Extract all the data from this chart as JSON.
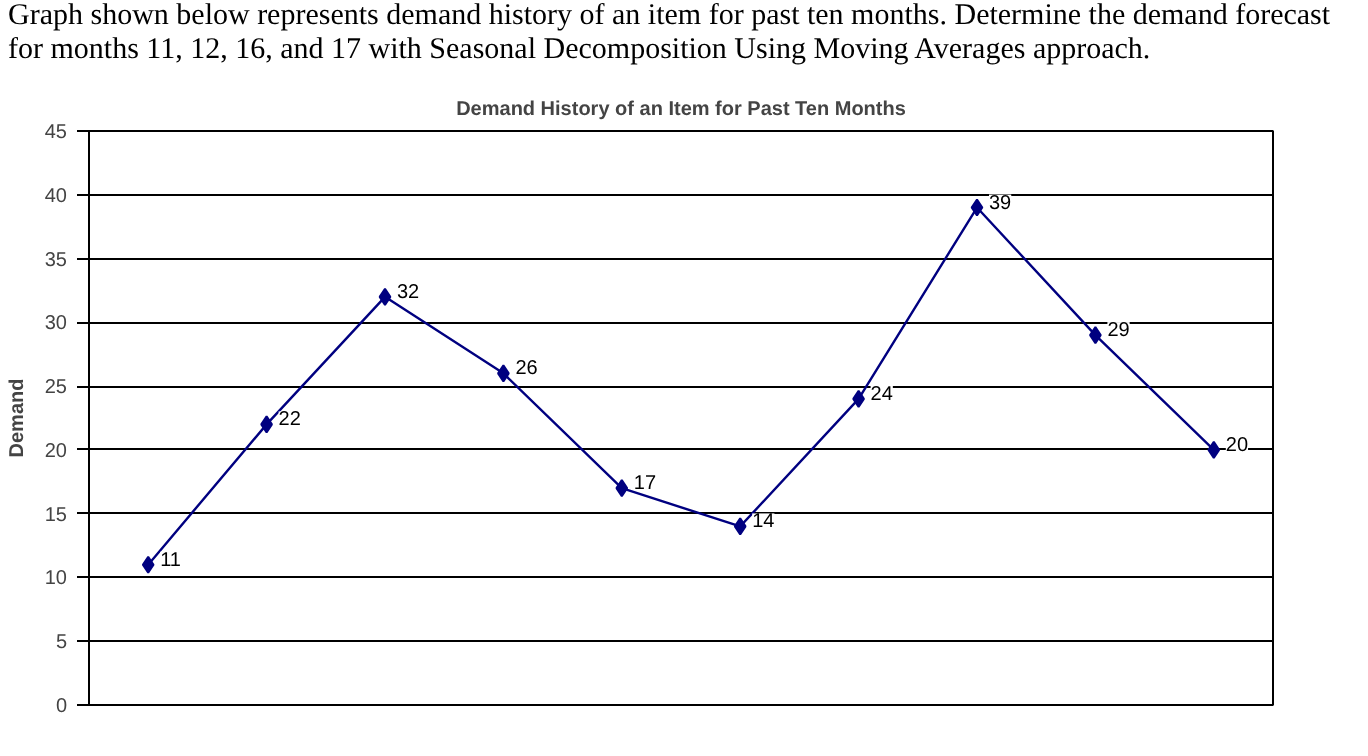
{
  "chart_data": {
    "type": "line",
    "title": "Demand History of an Item for Past Ten Months",
    "ylabel": "Demand",
    "annotations": [
      "Graph shown below represents demand history of an item for past ten months. Determine the demand forecast for months 11, 12, 16, and 17 with Seasonal Decomposition Using Moving Averages approach."
    ],
    "categories": [
      null,
      null,
      null,
      null,
      null,
      null,
      null,
      null,
      null,
      null
    ],
    "series": [
      {
        "color": "#000080",
        "values": [
          11,
          22,
          32,
          26,
          17,
          14,
          24,
          39,
          29,
          20
        ]
      }
    ],
    "ylim": [
      0,
      45
    ],
    "yticks": [
      0,
      5,
      10,
      15,
      20,
      25,
      30,
      35,
      40,
      45
    ],
    "grid": "y",
    "marker": "diamond",
    "line_style": "solid",
    "data_labels": true
  }
}
